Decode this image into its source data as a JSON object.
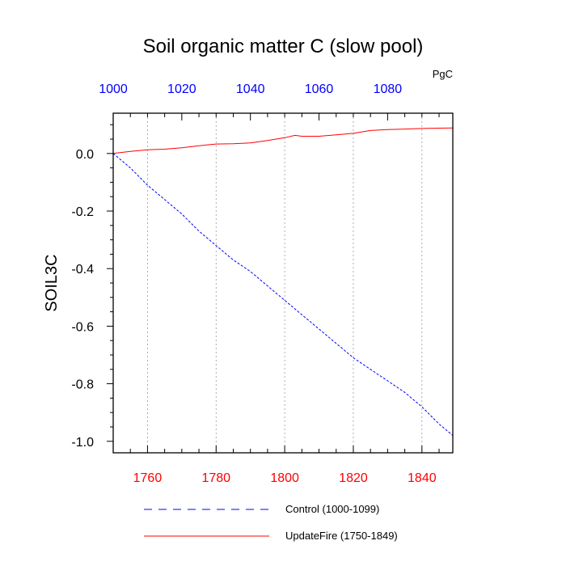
{
  "chart_data": {
    "type": "line",
    "title": "Soil organic matter C (slow pool)",
    "units": "PgC",
    "ylabel": "SOIL3C",
    "ylim": [
      -1.04,
      0.14
    ],
    "yticks": [
      0.0,
      -0.2,
      -0.4,
      -0.6,
      -0.8,
      -1.0
    ],
    "ytick_labels": [
      "0.0",
      "-0.2",
      "-0.4",
      "-0.6",
      "-0.8",
      "-1.0"
    ],
    "x_bottom": {
      "range": [
        1750,
        1849
      ],
      "ticks": [
        1760,
        1780,
        1800,
        1820,
        1840
      ],
      "tick_labels": [
        "1760",
        "1780",
        "1800",
        "1820",
        "1840"
      ],
      "color": "#ff0000"
    },
    "x_top": {
      "range": [
        1000,
        1099
      ],
      "ticks": [
        1000,
        1020,
        1040,
        1060,
        1080
      ],
      "tick_labels": [
        "1000",
        "1020",
        "1040",
        "1060",
        "1080"
      ],
      "color": "#0000ff"
    },
    "grid": "vertical dotted at bottom-axis major ticks",
    "series": [
      {
        "name": "Control (1000-1099)",
        "axis": "top",
        "color": "#0000ff",
        "dash": "dashed",
        "x": [
          1000,
          1005,
          1010,
          1015,
          1020,
          1025,
          1030,
          1035,
          1040,
          1045,
          1050,
          1055,
          1060,
          1065,
          1070,
          1075,
          1080,
          1085,
          1090,
          1095,
          1099
        ],
        "y": [
          0.0,
          -0.05,
          -0.11,
          -0.16,
          -0.21,
          -0.27,
          -0.32,
          -0.37,
          -0.41,
          -0.46,
          -0.51,
          -0.56,
          -0.61,
          -0.66,
          -0.71,
          -0.75,
          -0.79,
          -0.83,
          -0.88,
          -0.94,
          -0.98
        ]
      },
      {
        "name": "UpdateFire (1750-1849)",
        "axis": "bottom",
        "color": "#ff0000",
        "dash": "solid",
        "x": [
          1750,
          1755,
          1760,
          1765,
          1770,
          1775,
          1780,
          1785,
          1790,
          1795,
          1800,
          1803,
          1805,
          1810,
          1815,
          1820,
          1825,
          1830,
          1835,
          1840,
          1845,
          1849
        ],
        "y": [
          0.0,
          0.007,
          0.013,
          0.015,
          0.02,
          0.027,
          0.033,
          0.034,
          0.037,
          0.045,
          0.055,
          0.063,
          0.06,
          0.06,
          0.065,
          0.07,
          0.08,
          0.083,
          0.085,
          0.087,
          0.088,
          0.089
        ]
      }
    ]
  }
}
